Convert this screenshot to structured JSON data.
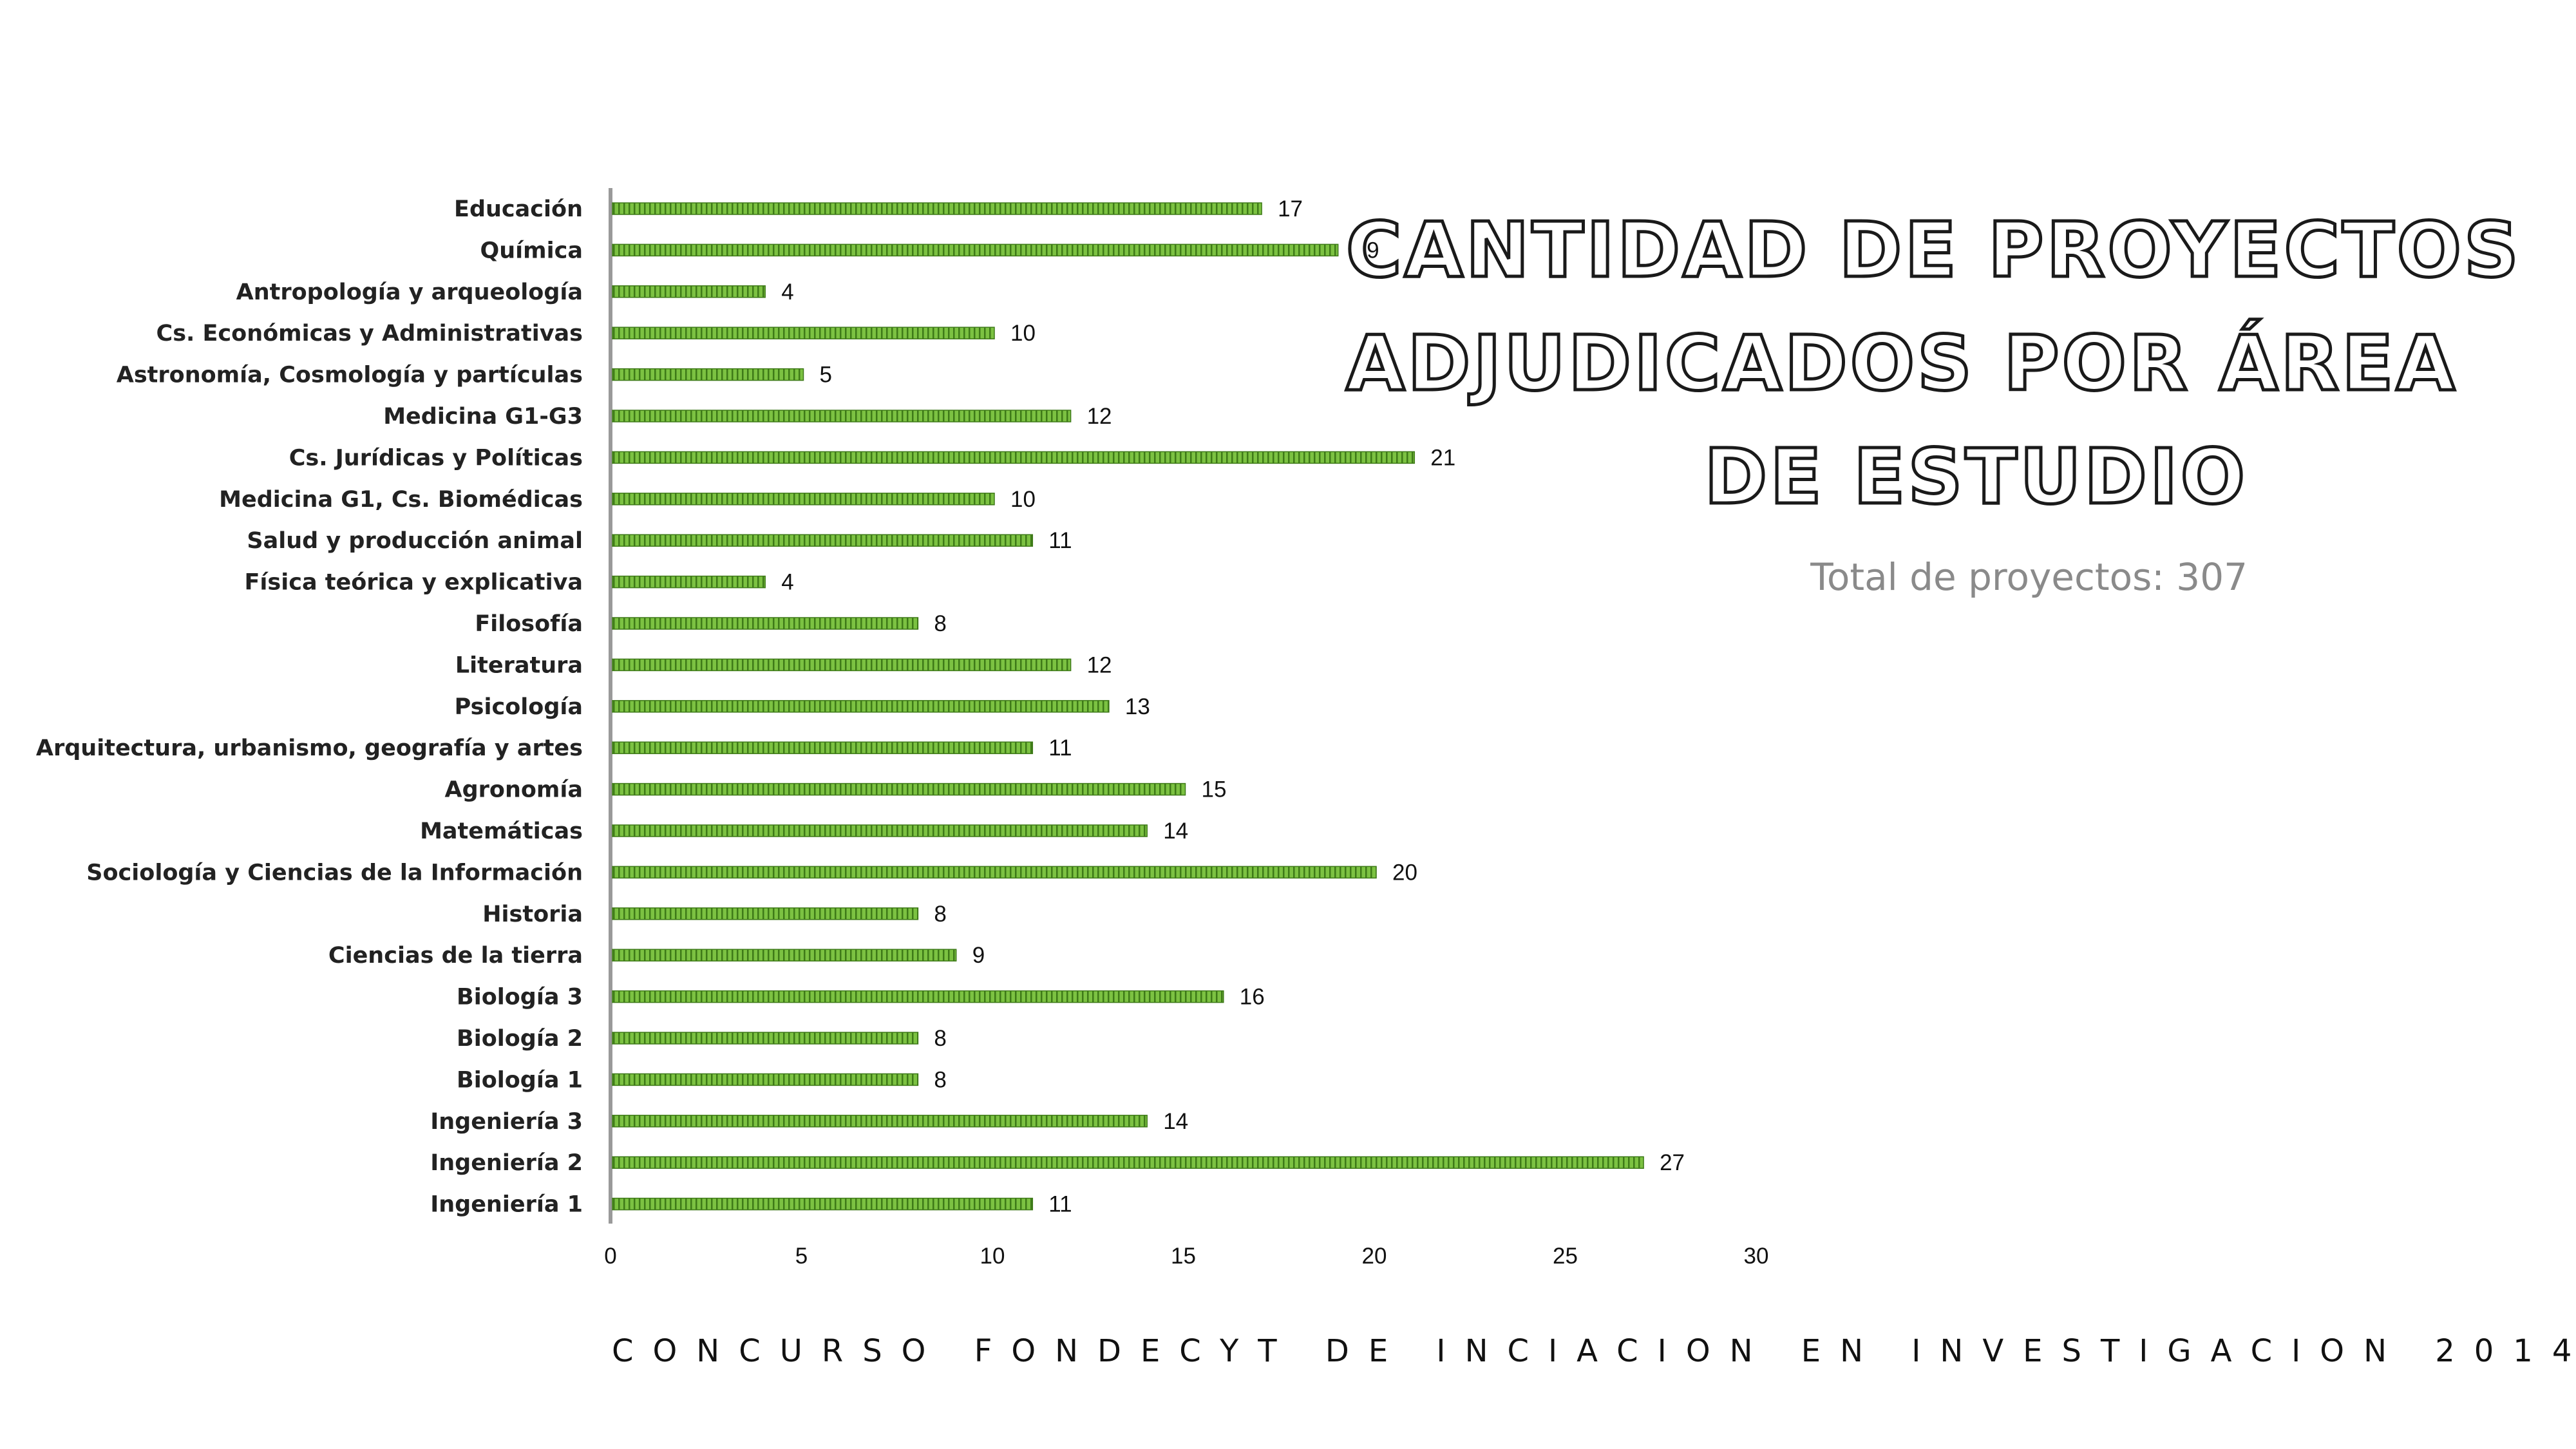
{
  "title_lines": [
    "Cantidad de proyectos",
    "adjudicados por área",
    "de estudio"
  ],
  "subtitle": "Total de proyectos: 307",
  "footer": "CONCURSO FONDECYT DE INCIACION EN INVESTIGACION 2014",
  "colors": {
    "bar": "#7cc242",
    "bar_stripe": "#3e7a18",
    "axis": "#9a9a9a"
  },
  "chart_data": {
    "type": "bar",
    "orientation": "horizontal",
    "categories": [
      "Educación",
      "Química",
      "Antropología y arqueología",
      "Cs. Económicas y Administrativas",
      "Astronomía, Cosmología y partículas",
      "Medicina G1-G3",
      "Cs. Jurídicas y Políticas",
      "Medicina G1, Cs. Biomédicas",
      "Salud y producción animal",
      "Física teórica y explicativa",
      "Filosofía",
      "Literatura",
      "Psicología",
      "Arquitectura, urbanismo, geografía y artes",
      "Agronomía",
      "Matemáticas",
      "Sociología y Ciencias de la Información",
      "Historia",
      "Ciencias de la tierra",
      "Biología 3",
      "Biología 2",
      "Biología 1",
      "Ingeniería 3",
      "Ingeniería 2",
      "Ingeniería 1"
    ],
    "values": [
      17,
      19,
      4,
      10,
      5,
      12,
      21,
      10,
      11,
      4,
      8,
      12,
      13,
      11,
      15,
      14,
      20,
      8,
      9,
      16,
      8,
      8,
      14,
      27,
      11
    ],
    "xlim": [
      0,
      30
    ],
    "xticks": [
      0,
      5,
      10,
      15,
      20,
      25,
      30
    ],
    "data_labels": true,
    "grid": false
  }
}
